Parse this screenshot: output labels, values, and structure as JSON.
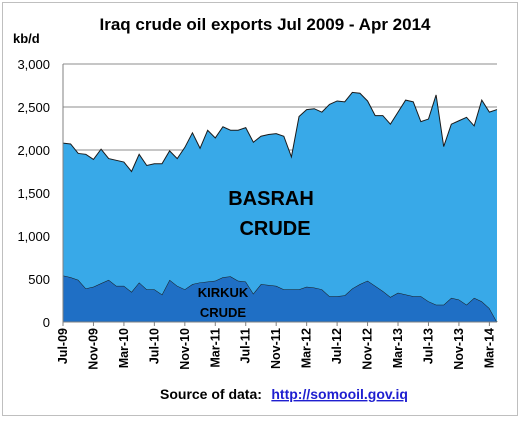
{
  "chart_data": {
    "type": "area",
    "stacked": true,
    "title": "Iraq crude oil exports Jul 2009 - Apr 2014",
    "ylabel": "kb/d",
    "ylim": [
      0,
      3000
    ],
    "yticks": [
      0,
      500,
      1000,
      1500,
      2000,
      2500,
      3000
    ],
    "ytick_labels": [
      "0",
      "500",
      "1,000",
      "1,500",
      "2,000",
      "2,500",
      "3,000"
    ],
    "grid": true,
    "x": [
      "Jul-09",
      "Aug-09",
      "Sep-09",
      "Oct-09",
      "Nov-09",
      "Dec-09",
      "Jan-10",
      "Feb-10",
      "Mar-10",
      "Apr-10",
      "May-10",
      "Jun-10",
      "Jul-10",
      "Aug-10",
      "Sep-10",
      "Oct-10",
      "Nov-10",
      "Dec-10",
      "Jan-11",
      "Feb-11",
      "Mar-11",
      "Apr-11",
      "May-11",
      "Jun-11",
      "Jul-11",
      "Aug-11",
      "Sep-11",
      "Oct-11",
      "Nov-11",
      "Dec-11",
      "Jan-12",
      "Feb-12",
      "Mar-12",
      "Apr-12",
      "May-12",
      "Jun-12",
      "Jul-12",
      "Aug-12",
      "Sep-12",
      "Oct-12",
      "Nov-12",
      "Dec-12",
      "Jan-13",
      "Feb-13",
      "Mar-13",
      "Apr-13",
      "May-13",
      "Jun-13",
      "Jul-13",
      "Aug-13",
      "Sep-13",
      "Oct-13",
      "Nov-13",
      "Dec-13",
      "Jan-14",
      "Feb-14",
      "Mar-14",
      "Apr-14"
    ],
    "xtick_labels": [
      "Jul-09",
      "Nov-09",
      "Mar-10",
      "Jul-10",
      "Nov-10",
      "Mar-11",
      "Jul-11",
      "Nov-11",
      "Mar-12",
      "Jul-12",
      "Nov-12",
      "Mar-13",
      "Jul-13",
      "Nov-13",
      "Mar-14"
    ],
    "series": [
      {
        "name": "KIRKUK CRUDE",
        "color": "#1f6fc5",
        "values": [
          540,
          520,
          490,
          390,
          410,
          450,
          490,
          420,
          420,
          350,
          460,
          380,
          380,
          320,
          490,
          420,
          380,
          440,
          460,
          470,
          480,
          520,
          530,
          480,
          470,
          330,
          440,
          430,
          420,
          380,
          380,
          380,
          410,
          400,
          380,
          300,
          300,
          310,
          390,
          440,
          480,
          420,
          360,
          290,
          340,
          320,
          300,
          300,
          240,
          200,
          200,
          280,
          260,
          200,
          280,
          240,
          160,
          0
        ]
      },
      {
        "name": "BASRAH CRUDE",
        "color": "#38a9e8",
        "values": [
          1540,
          1550,
          1470,
          1560,
          1480,
          1560,
          1410,
          1460,
          1440,
          1400,
          1490,
          1440,
          1460,
          1520,
          1500,
          1480,
          1650,
          1760,
          1560,
          1760,
          1660,
          1750,
          1700,
          1750,
          1790,
          1760,
          1720,
          1750,
          1770,
          1780,
          1540,
          2010,
          2060,
          2080,
          2060,
          2230,
          2270,
          2250,
          2280,
          2220,
          2090,
          1980,
          2040,
          2010,
          2100,
          2260,
          2260,
          2030,
          2120,
          2440,
          1840,
          2020,
          2080,
          2180,
          2000,
          2340,
          2280,
          2470
        ]
      }
    ],
    "annotations": [
      "BASRAH",
      "CRUDE",
      "KIRKUK",
      "CRUDE"
    ]
  },
  "source": {
    "prefix": "Source of data:",
    "link": "http://somooil.gov.iq"
  }
}
